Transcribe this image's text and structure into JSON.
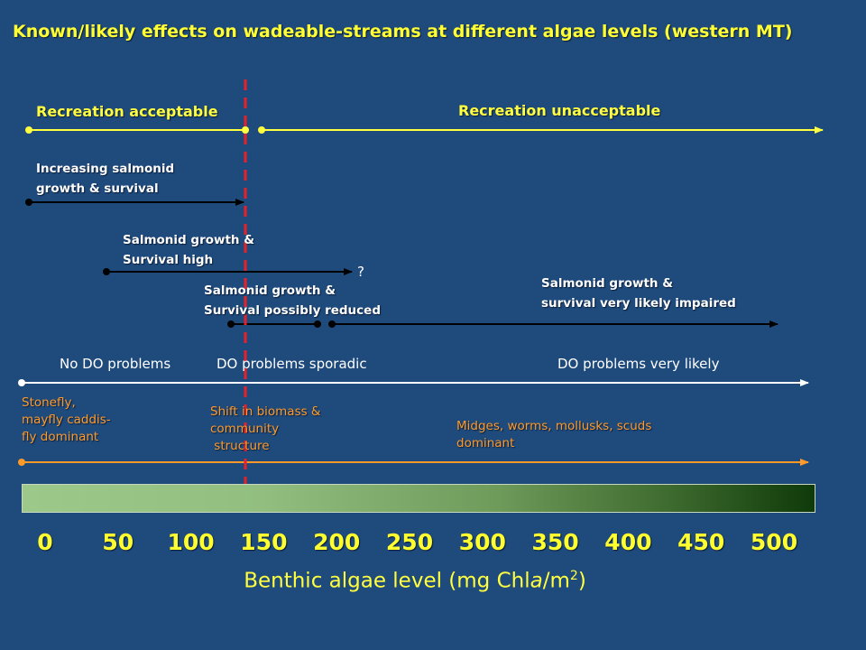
{
  "title": "Known/likely effects on wadeable-streams at different algae levels (western MT)",
  "recreation": {
    "acceptable": "Recreation acceptable",
    "unacceptable": "Recreation unacceptable"
  },
  "salmonid": {
    "increasing": [
      "Increasing salmonid",
      "growth & survival"
    ],
    "high": [
      "Salmonid growth &",
      "Survival high"
    ],
    "question_mark": "?",
    "possibly_reduced": [
      "Salmonid growth &",
      "Survival possibly reduced"
    ],
    "likely_impaired": [
      "Salmonid growth &",
      "survival very likely impaired"
    ]
  },
  "dissolved_oxygen": {
    "none": "No DO problems",
    "sporadic": "DO problems sporadic",
    "very_likely": "DO problems very likely"
  },
  "invertebrates": {
    "stonefly": "Stonefly,\nmayfly caddis-\nfly dominant",
    "shift": "Shift in biomass &\ncommunity\n structure",
    "midges": "Midges, worms, mollusks, scuds\ndominant"
  },
  "axis": {
    "ticks": [
      "0",
      "50",
      "100",
      "150",
      "200",
      "250",
      "300",
      "350",
      "400",
      "450",
      "500"
    ],
    "label": "Benthic algae level (mg Chl",
    "label_italic": "a",
    "label_unit": "/m",
    "label_sup": "2",
    "label_close": ")"
  },
  "colors": {
    "background": "#1f4a7c",
    "recreation_line": "#ffff40",
    "salmonid_line": "#000000",
    "do_line": "#ffffff",
    "invertebrate_line": "#ff9a2a",
    "threshold_line": "#e8202a"
  },
  "threshold_value": 150
}
